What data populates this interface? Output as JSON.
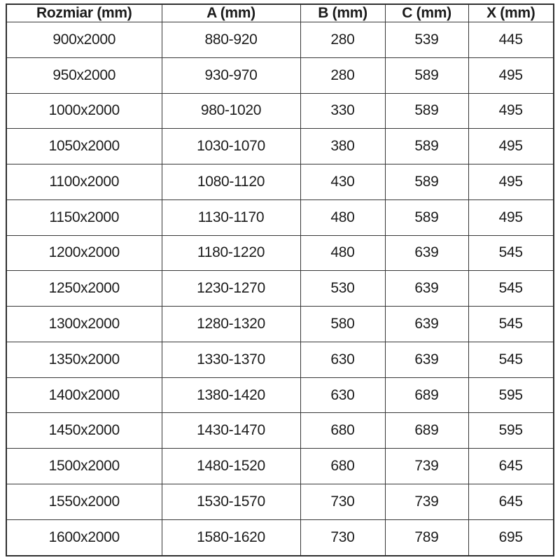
{
  "table": {
    "name": "dimension-spec-table",
    "columns": [
      "Rozmiar (mm)",
      "A (mm)",
      "B (mm)",
      "C (mm)",
      "X (mm)"
    ],
    "rows": [
      [
        "900x2000",
        "880-920",
        "280",
        "539",
        "445"
      ],
      [
        "950x2000",
        "930-970",
        "280",
        "589",
        "495"
      ],
      [
        "1000x2000",
        "980-1020",
        "330",
        "589",
        "495"
      ],
      [
        "1050x2000",
        "1030-1070",
        "380",
        "589",
        "495"
      ],
      [
        "1100x2000",
        "1080-1120",
        "430",
        "589",
        "495"
      ],
      [
        "1150x2000",
        "1130-1170",
        "480",
        "589",
        "495"
      ],
      [
        "1200x2000",
        "1180-1220",
        "480",
        "639",
        "545"
      ],
      [
        "1250x2000",
        "1230-1270",
        "530",
        "639",
        "545"
      ],
      [
        "1300x2000",
        "1280-1320",
        "580",
        "639",
        "545"
      ],
      [
        "1350x2000",
        "1330-1370",
        "630",
        "639",
        "545"
      ],
      [
        "1400x2000",
        "1380-1420",
        "630",
        "689",
        "595"
      ],
      [
        "1450x2000",
        "1430-1470",
        "680",
        "689",
        "595"
      ],
      [
        "1500x2000",
        "1480-1520",
        "680",
        "739",
        "645"
      ],
      [
        "1550x2000",
        "1530-1570",
        "730",
        "739",
        "645"
      ],
      [
        "1600x2000",
        "1580-1620",
        "730",
        "789",
        "695"
      ]
    ],
    "colors": {
      "border": "#383838",
      "text": "#1c1c1c",
      "background": "#ffffff"
    }
  }
}
